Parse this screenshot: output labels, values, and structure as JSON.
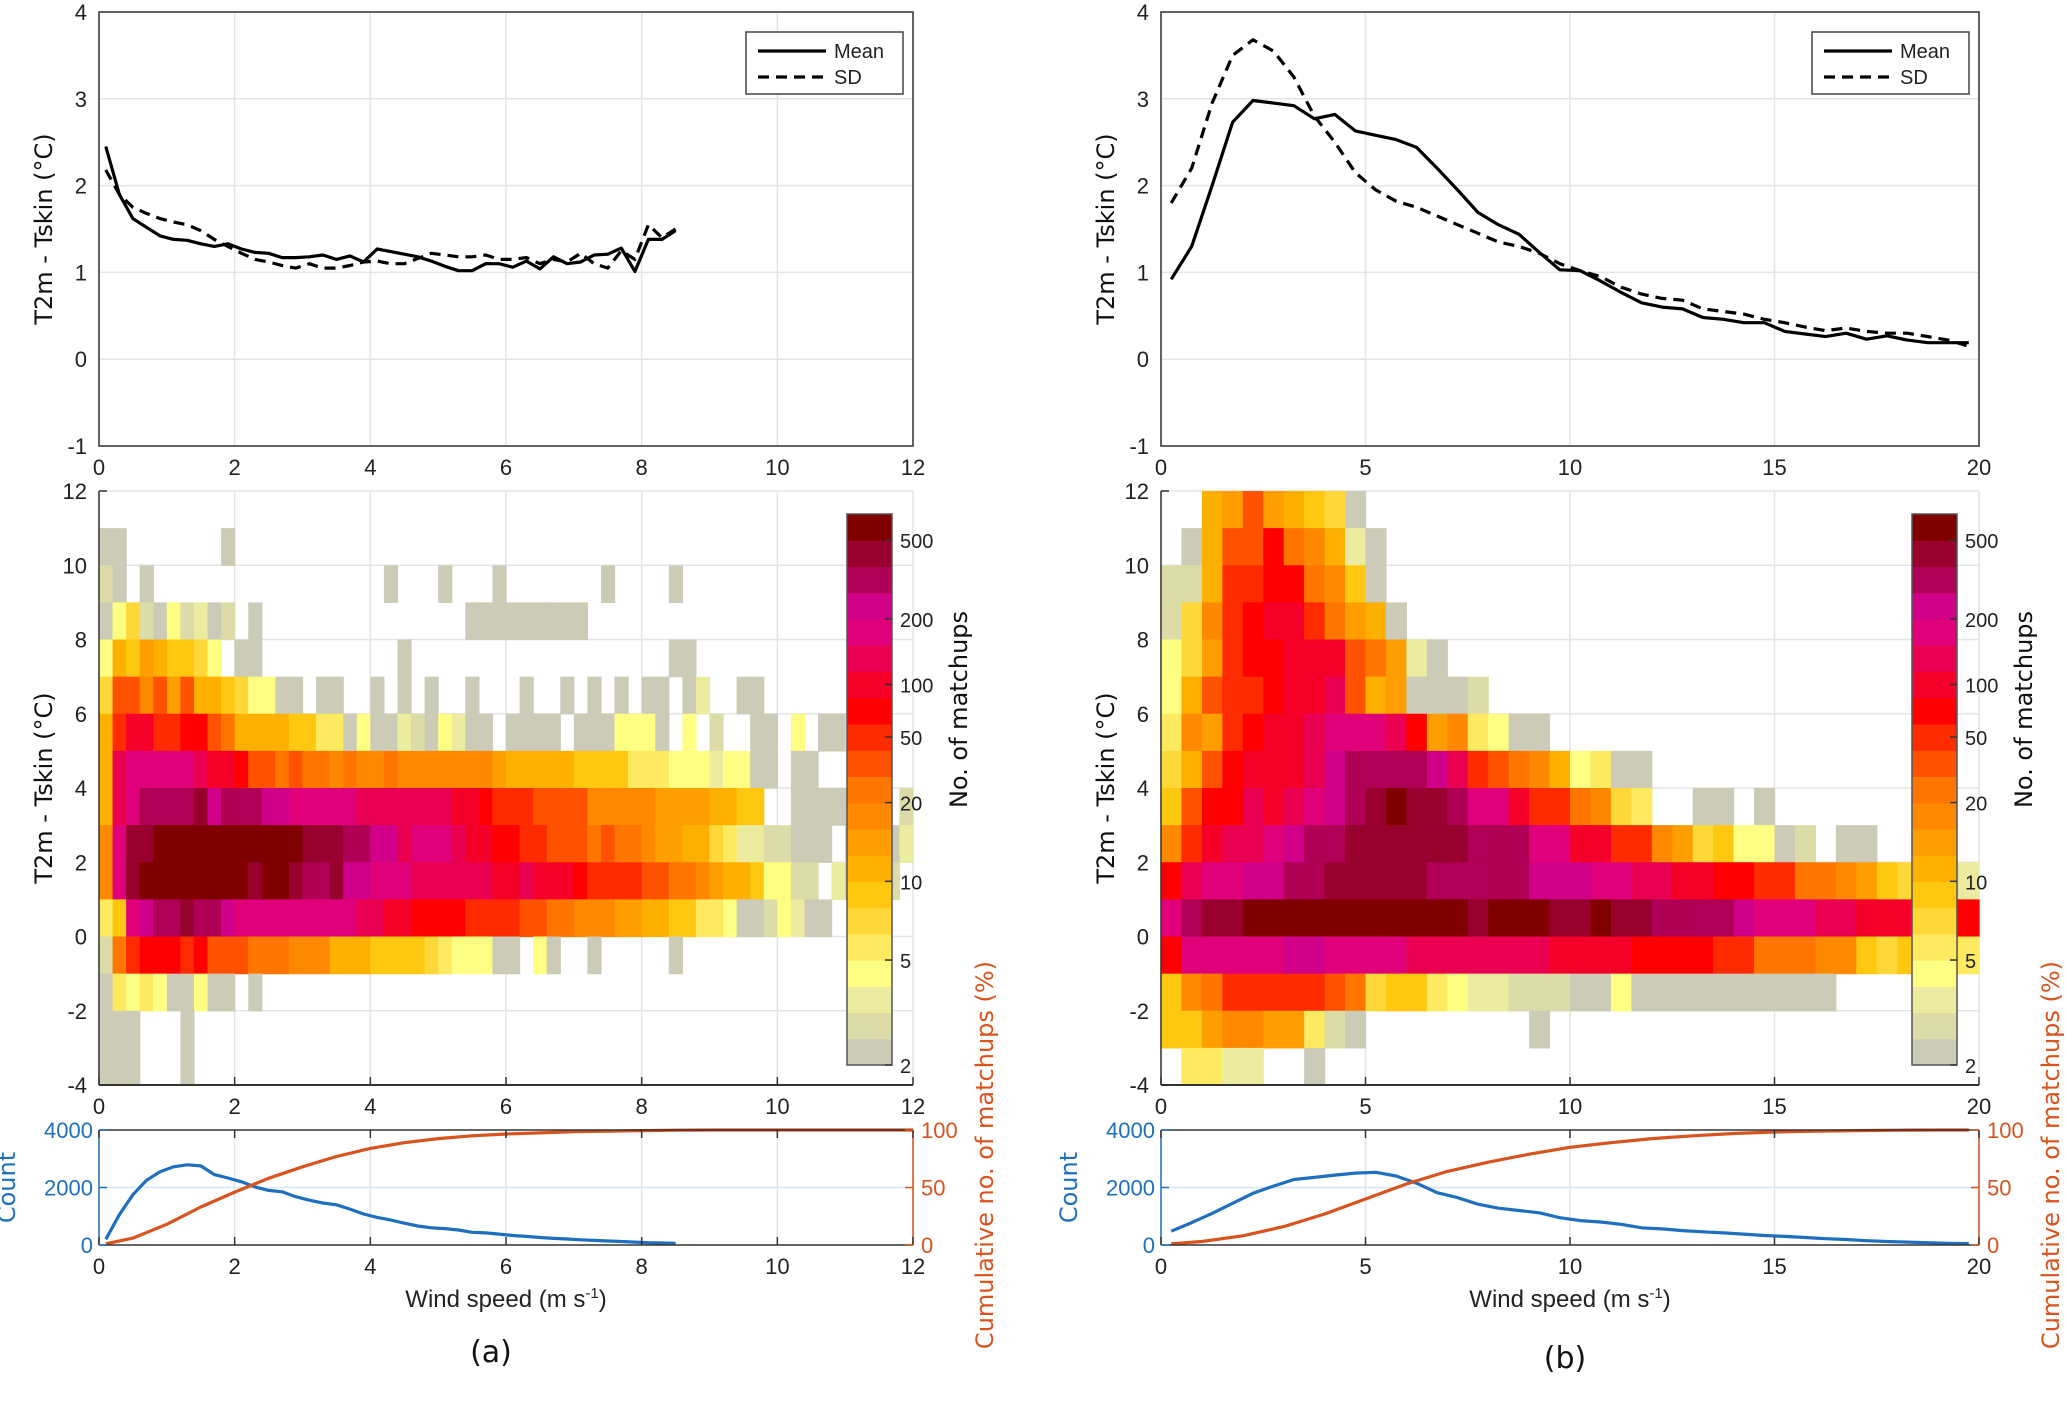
{
  "palette": [
    "#cbcbb8",
    "#dcdca8",
    "#ececa0",
    "#fefe82",
    "#feea60",
    "#fed838",
    "#fec810",
    "#feb000",
    "#fe9e00",
    "#fe8800",
    "#fe7600",
    "#fe5200",
    "#fe2a00",
    "#fe0000",
    "#f40028",
    "#ea0050",
    "#e0007a",
    "#d00088",
    "#b00055",
    "#98002e",
    "#800000"
  ],
  "chart_data": [
    {
      "panel": "a",
      "type": "line",
      "subplot": "mean-sd",
      "xlabel": "",
      "ylabel": "T2m - Tskin (°C)",
      "xlim": [
        0,
        12
      ],
      "ylim": [
        -1,
        4
      ],
      "xticks": [
        0,
        2,
        4,
        6,
        8,
        10,
        12
      ],
      "yticks": [
        -1,
        0,
        1,
        2,
        3,
        4
      ],
      "grid": true,
      "legend": {
        "position": "top-right",
        "entries": [
          "Mean",
          "SD"
        ]
      },
      "series": [
        {
          "name": "Mean",
          "style": "solid",
          "x": [
            0.1,
            0.3,
            0.5,
            0.7,
            0.9,
            1.1,
            1.3,
            1.5,
            1.7,
            1.9,
            2.1,
            2.3,
            2.5,
            2.7,
            2.9,
            3.1,
            3.3,
            3.5,
            3.7,
            3.9,
            4.1,
            4.3,
            4.5,
            4.7,
            4.9,
            5.1,
            5.3,
            5.5,
            5.7,
            5.9,
            6.1,
            6.3,
            6.5,
            6.7,
            6.9,
            7.1,
            7.3,
            7.5,
            7.7,
            7.9,
            8.1,
            8.3,
            8.5
          ],
          "y": [
            2.45,
            1.9,
            1.62,
            1.52,
            1.42,
            1.38,
            1.37,
            1.33,
            1.3,
            1.33,
            1.27,
            1.23,
            1.22,
            1.17,
            1.17,
            1.18,
            1.2,
            1.15,
            1.19,
            1.12,
            1.27,
            1.24,
            1.21,
            1.18,
            1.13,
            1.07,
            1.02,
            1.02,
            1.1,
            1.1,
            1.06,
            1.13,
            1.04,
            1.18,
            1.1,
            1.12,
            1.2,
            1.21,
            1.28,
            1.01,
            1.38,
            1.38,
            1.48
          ]
        },
        {
          "name": "SD",
          "style": "dashed",
          "x": [
            0.1,
            0.3,
            0.5,
            0.7,
            0.9,
            1.1,
            1.3,
            1.5,
            1.7,
            1.9,
            2.1,
            2.3,
            2.5,
            2.7,
            2.9,
            3.1,
            3.3,
            3.5,
            3.7,
            3.9,
            4.1,
            4.3,
            4.5,
            4.7,
            4.9,
            5.1,
            5.3,
            5.5,
            5.7,
            5.9,
            6.1,
            6.3,
            6.5,
            6.7,
            6.9,
            7.1,
            7.3,
            7.5,
            7.7,
            7.9,
            8.1,
            8.3,
            8.5
          ],
          "y": [
            2.18,
            1.9,
            1.75,
            1.68,
            1.62,
            1.58,
            1.55,
            1.48,
            1.38,
            1.3,
            1.22,
            1.15,
            1.12,
            1.08,
            1.05,
            1.1,
            1.05,
            1.05,
            1.08,
            1.12,
            1.13,
            1.1,
            1.1,
            1.16,
            1.22,
            1.2,
            1.18,
            1.18,
            1.2,
            1.15,
            1.15,
            1.17,
            1.1,
            1.15,
            1.12,
            1.22,
            1.1,
            1.05,
            1.25,
            1.15,
            1.55,
            1.4,
            1.5
          ]
        }
      ]
    },
    {
      "panel": "a",
      "type": "heatmap",
      "subplot": "density",
      "ylabel": "T2m - Tskin (°C)",
      "xlim": [
        0,
        12
      ],
      "ylim": [
        -4,
        12
      ],
      "xticks": [
        0,
        2,
        4,
        6,
        8,
        10,
        12
      ],
      "yticks": [
        -4,
        -2,
        0,
        2,
        4,
        6,
        8,
        10,
        12
      ],
      "x_bin_width": 0.2,
      "y_bin_width": 1,
      "colorbar": {
        "label": "No. of matchups",
        "ticks": [
          "2",
          "5",
          "10",
          "20",
          "50",
          "100",
          "200",
          "500"
        ],
        "tick_levels": [
          0,
          3.5,
          6.5,
          9.5,
          12,
          14,
          16.5,
          19.5
        ],
        "scale": "log"
      },
      "level_code": "'.' = empty, 'a'..'u' = palette index 0..20",
      "rows_top_to_bottom": [
        "............................................................",
        "aa.......a..................................................",
        "ba.a.................a...a...a.......a....a.................",
        "adfbadbcab.a...............aaaaaaaaa........................",
        "dhgihggfd.aa..........a...................aa................",
        "flljlilhhgfddaa.aa..a.a.a..a...a..a.a.a.aa.ac..aa...........",
        "hmoommnnlkhhhhggeeadaacbadcaa.aaaa.aaaddda.d.b..aa.d.aa.b...",
        "hpqqqqqpoonllklkkjkjjkjjjjjjjihhhhhggggeeedddcddaa.aa.......",
        "hpqsssstrsssrrqqqqqpppppppoonmmmlllljjjjjiiiihhgg..aaaaa.a.b",
        "jqttuuuuuuuuuuutttssrrpqqqpoonnmmlllklkkjiihhfeccbbaaa.ab.ac",
        "jqtuuuuuuuutuutsstrrqqqppppppoopooonmmmmllkkjihhgddbb.ca.ab.",
        "egqrsstssrqqqqqqqqqppoonnnnmmmmllkkjjjiihhggeedaabdcaa..b...",
        "bkmnnnmnlllkkkjjjhhhggggfedddaa.da..a.....a.................",
        "aededaadaa.a................................................",
        "aaa...a.....................................................",
        "aaa...a....................................................."
      ]
    },
    {
      "panel": "a",
      "type": "line",
      "subplot": "count-cumulative",
      "xlabel": "Wind speed (m s-1)",
      "ylabel_left": "Count",
      "ylabel_right": "Cumulative no. of matchups (%)",
      "xlim": [
        0,
        12
      ],
      "ylim_left": [
        0,
        4000
      ],
      "ylim_right": [
        0,
        100
      ],
      "xticks": [
        0,
        2,
        4,
        6,
        8,
        10,
        12
      ],
      "yticks_left": [
        0,
        2000,
        4000
      ],
      "yticks_right": [
        0,
        50,
        100
      ],
      "series": [
        {
          "name": "Count",
          "axis": "left",
          "color": "#1f6fbf",
          "x": [
            0.1,
            0.3,
            0.5,
            0.7,
            0.9,
            1.1,
            1.3,
            1.5,
            1.7,
            1.9,
            2.1,
            2.3,
            2.5,
            2.7,
            2.9,
            3.1,
            3.3,
            3.5,
            3.7,
            3.9,
            4.1,
            4.3,
            4.5,
            4.7,
            4.9,
            5.1,
            5.3,
            5.5,
            5.7,
            5.9,
            6.1,
            6.3,
            6.5,
            6.7,
            6.9,
            7.1,
            7.3,
            7.5,
            7.7,
            7.9,
            8.1,
            8.3,
            8.5
          ],
          "y": [
            200,
            1050,
            1750,
            2250,
            2550,
            2720,
            2790,
            2750,
            2450,
            2330,
            2200,
            2020,
            1900,
            1850,
            1680,
            1560,
            1460,
            1400,
            1250,
            1080,
            960,
            870,
            760,
            660,
            600,
            570,
            520,
            440,
            420,
            380,
            330,
            300,
            260,
            230,
            210,
            180,
            160,
            140,
            120,
            100,
            80,
            70,
            60
          ]
        },
        {
          "name": "Cumulative",
          "axis": "right",
          "color": "#d9531e",
          "x": [
            0.1,
            0.5,
            1.0,
            1.5,
            2.0,
            2.5,
            3.0,
            3.5,
            4.0,
            4.5,
            5.0,
            5.5,
            6.0,
            6.5,
            7.0,
            7.5,
            8.0,
            8.5,
            9.0,
            10.0,
            11.0,
            12.0
          ],
          "y": [
            1,
            6,
            18,
            33,
            46,
            58,
            68,
            77,
            84,
            89,
            92.5,
            95,
            96.5,
            97.5,
            98.5,
            99,
            99.5,
            99.8,
            100,
            100,
            100,
            100
          ]
        }
      ]
    },
    {
      "panel": "b",
      "type": "line",
      "subplot": "mean-sd",
      "ylabel": "T2m - Tskin  (°C)",
      "xlim": [
        0,
        20
      ],
      "ylim": [
        -1,
        4
      ],
      "xticks": [
        0,
        5,
        10,
        15,
        20
      ],
      "yticks": [
        -1,
        0,
        1,
        2,
        3,
        4
      ],
      "grid": true,
      "legend": {
        "position": "top-right",
        "entries": [
          "Mean",
          "SD"
        ]
      },
      "series": [
        {
          "name": "Mean",
          "style": "solid",
          "x": [
            0.25,
            0.75,
            1.25,
            1.75,
            2.25,
            2.75,
            3.25,
            3.75,
            4.25,
            4.75,
            5.25,
            5.75,
            6.25,
            6.75,
            7.25,
            7.75,
            8.25,
            8.75,
            9.25,
            9.75,
            10.25,
            10.75,
            11.25,
            11.75,
            12.25,
            12.75,
            13.25,
            13.75,
            14.25,
            14.75,
            15.25,
            15.75,
            16.25,
            16.75,
            17.25,
            17.75,
            18.25,
            18.75,
            19.25,
            19.75
          ],
          "y": [
            0.92,
            1.3,
            2.0,
            2.73,
            2.98,
            2.95,
            2.92,
            2.77,
            2.82,
            2.63,
            2.58,
            2.53,
            2.44,
            2.2,
            1.95,
            1.69,
            1.55,
            1.44,
            1.23,
            1.03,
            1.02,
            0.9,
            0.77,
            0.65,
            0.6,
            0.58,
            0.48,
            0.46,
            0.42,
            0.42,
            0.32,
            0.29,
            0.26,
            0.3,
            0.23,
            0.27,
            0.22,
            0.19,
            0.19,
            0.19
          ]
        },
        {
          "name": "SD",
          "style": "dashed",
          "x": [
            0.25,
            0.75,
            1.25,
            1.75,
            2.25,
            2.75,
            3.25,
            3.75,
            4.25,
            4.75,
            5.25,
            5.75,
            6.25,
            6.75,
            7.25,
            7.75,
            8.25,
            8.75,
            9.25,
            9.75,
            10.25,
            10.75,
            11.25,
            11.75,
            12.25,
            12.75,
            13.25,
            13.75,
            14.25,
            14.75,
            15.25,
            15.75,
            16.25,
            16.75,
            17.25,
            17.75,
            18.25,
            18.75,
            19.25,
            19.75
          ],
          "y": [
            1.8,
            2.2,
            2.95,
            3.5,
            3.68,
            3.55,
            3.25,
            2.8,
            2.5,
            2.15,
            1.95,
            1.82,
            1.75,
            1.65,
            1.55,
            1.45,
            1.35,
            1.3,
            1.22,
            1.1,
            1.02,
            0.95,
            0.83,
            0.75,
            0.7,
            0.68,
            0.58,
            0.55,
            0.52,
            0.46,
            0.42,
            0.37,
            0.33,
            0.36,
            0.32,
            0.3,
            0.3,
            0.26,
            0.22,
            0.15
          ]
        }
      ]
    },
    {
      "panel": "b",
      "type": "heatmap",
      "subplot": "density",
      "ylabel": "T2m - Tskin  (°C)",
      "xlim": [
        0,
        20
      ],
      "ylim": [
        -4,
        12
      ],
      "xticks": [
        0,
        5,
        10,
        15,
        20
      ],
      "yticks": [
        -4,
        -2,
        0,
        2,
        4,
        6,
        8,
        10,
        12
      ],
      "x_bin_width": 0.5,
      "y_bin_width": 1,
      "colorbar": {
        "label": "No. of matchups",
        "ticks": [
          "2",
          "5",
          "10",
          "20",
          "50",
          "100",
          "200",
          "500"
        ],
        "tick_levels": [
          0,
          3.5,
          6.5,
          9.5,
          12,
          14,
          16.5,
          19.5
        ],
        "scale": "log"
      },
      "level_code": "'.' = empty, 'a'..'u' = palette index 0..20",
      "rows_top_to_bottom": [
        "..hilihgfa..............................",
        ".ahllnkjhca.............................",
        "bbhmmnnkjga.............................",
        "bfjmnoomkiha............................",
        "dfimnnooolkica..........................",
        "dhlmmnooplhiaaab........................",
        "ejimnoopqqqpnijedaa.....................",
        "fhlnoooprssssrpmlkjhdeaa................",
        "glnnpopqrstuttsqqommkjfe..aa.a..........",
        "jmoppqrssttttttsssqqoommjifgddab.aa.....",
        "npqqrrsstttttsssssrrrqqppoonnmmkkjigfdbca",
        "qsttuuuuuuuuuuutuuuttuttssssrqqqppoooonnm",
        "nqqqqqrrqqqqpppppppoooonnnnmmkkkjjgfgefeb",
        "gjkmmmmmlkfggedccbbbaadaaaaaaaaaa.......",
        "ggijjiieba........a.....................",
        ".eecc..a................................"
      ]
    },
    {
      "panel": "b",
      "type": "line",
      "subplot": "count-cumulative",
      "xlabel": "Wind speed (m s-1)",
      "ylabel_left": "Count",
      "ylabel_right": "Cumulative no. of matchups (%)",
      "xlim": [
        0,
        20
      ],
      "ylim_left": [
        0,
        4000
      ],
      "ylim_right": [
        0,
        100
      ],
      "xticks": [
        0,
        5,
        10,
        15,
        20
      ],
      "yticks_left": [
        0,
        2000,
        4000
      ],
      "yticks_right": [
        0,
        50,
        100
      ],
      "series": [
        {
          "name": "Count",
          "axis": "left",
          "color": "#1f6fbf",
          "x": [
            0.25,
            0.75,
            1.25,
            1.75,
            2.25,
            2.75,
            3.25,
            3.75,
            4.25,
            4.75,
            5.25,
            5.75,
            6.25,
            6.75,
            7.25,
            7.75,
            8.25,
            8.75,
            9.25,
            9.75,
            10.25,
            10.75,
            11.25,
            11.75,
            12.25,
            12.75,
            13.25,
            13.75,
            14.25,
            14.75,
            15.25,
            15.75,
            16.25,
            16.75,
            17.25,
            17.75,
            18.25,
            18.75,
            19.25,
            19.75
          ],
          "y": [
            480,
            780,
            1100,
            1450,
            1800,
            2050,
            2280,
            2350,
            2430,
            2500,
            2530,
            2400,
            2150,
            1820,
            1650,
            1420,
            1280,
            1200,
            1120,
            950,
            850,
            800,
            720,
            600,
            560,
            500,
            460,
            420,
            380,
            330,
            300,
            260,
            220,
            190,
            150,
            120,
            100,
            80,
            60,
            50
          ]
        },
        {
          "name": "Cumulative",
          "axis": "right",
          "color": "#d9531e",
          "x": [
            0.25,
            1,
            2,
            3,
            4,
            5,
            6,
            7,
            8,
            9,
            10,
            11,
            12,
            13,
            14,
            15,
            16,
            17,
            18,
            19,
            19.75
          ],
          "y": [
            1,
            3,
            8,
            16,
            27,
            40,
            53,
            64,
            72,
            79,
            85,
            89,
            92.5,
            95,
            97,
            98.3,
            99,
            99.5,
            99.8,
            100,
            100
          ]
        }
      ]
    }
  ],
  "labels": {
    "panel_a": "(a)",
    "panel_b": "(b)",
    "ylabel_top": "T2m - Tskin (°C)",
    "ylabel_top_b": "T2m - Tskin  (°C)",
    "colorbar_label": "No. of matchups",
    "count": "Count",
    "cumulative": "Cumulative no. of matchups (%)",
    "wind_speed": "Wind speed (m s",
    "wind_speed_sup": "-1",
    "wind_speed_close": ")",
    "legend_mean": "Mean",
    "legend_sd": "SD"
  }
}
